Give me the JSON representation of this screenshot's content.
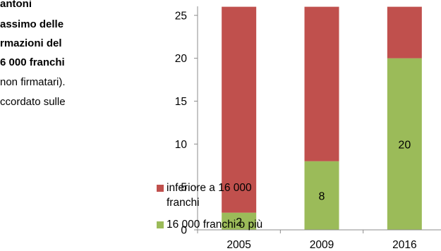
{
  "text_lines": [
    {
      "text": "antoni",
      "bold": true
    },
    {
      "text": "assimo delle",
      "bold": true
    },
    {
      "text": "rmazioni del",
      "bold": true
    },
    {
      "text": "6 000 franchi",
      "bold": true
    },
    {
      "text": "non firmatari).",
      "bold": false
    },
    {
      "text": "ccordato sulle",
      "bold": false
    }
  ],
  "legend": [
    {
      "label_lines": [
        "inferiore a 16 000",
        "franchi"
      ],
      "color": "#C0504D"
    },
    {
      "label_lines": [
        "16 000 franchi o più"
      ],
      "color": "#9BBB59"
    }
  ],
  "chart_data": {
    "type": "bar",
    "stacked": true,
    "categories": [
      "2005",
      "2009",
      "2016"
    ],
    "series": [
      {
        "name": "16 000 franchi o più",
        "color": "#9BBB59",
        "values": [
          2,
          8,
          20
        ],
        "labels": [
          "2",
          "8",
          "20"
        ]
      },
      {
        "name": "inferiore a 16 000 franchi",
        "color": "#C0504D",
        "values": [
          24,
          18,
          6
        ]
      }
    ],
    "ylim": [
      0,
      26
    ],
    "yticks": [
      0,
      5,
      10,
      15,
      20,
      25
    ],
    "grid": false
  }
}
